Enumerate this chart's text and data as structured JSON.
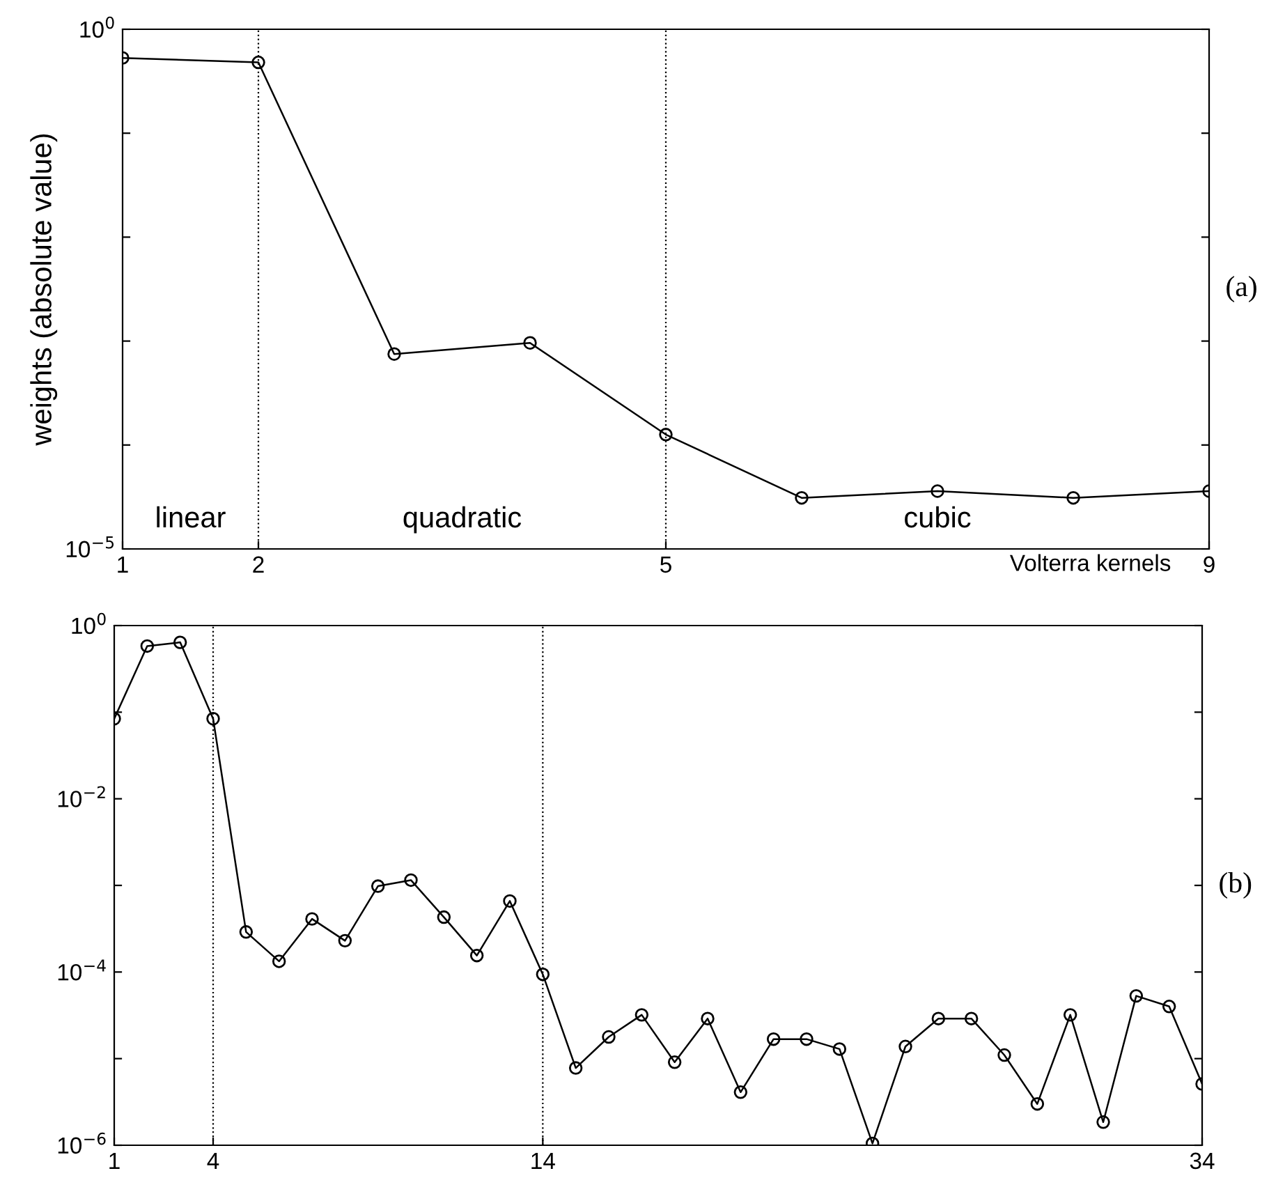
{
  "chart_data": [
    {
      "type": "line",
      "ylabel": "weights (absolute value)",
      "xlabel": "Volterra kernels",
      "log": "y",
      "marker": "circle",
      "line_style": "solid",
      "grid": false,
      "x": [
        1,
        2,
        3,
        4,
        5,
        6,
        7,
        8,
        9
      ],
      "series": [
        {
          "color": "#000000",
          "values": [
            0.53,
            0.48,
            0.00075,
            0.00096,
            0.000126,
            3.1e-05,
            3.6e-05,
            3.1e-05,
            3.6e-05
          ]
        }
      ],
      "xlim": [
        1,
        9
      ],
      "xticks": [
        1,
        2,
        5,
        9
      ],
      "ylim": [
        1e-05,
        1
      ],
      "yticks": [
        {
          "value": 1,
          "label": "10$^{0}$"
        },
        {
          "value": 0.1,
          "label": null
        },
        {
          "value": 0.01,
          "label": null
        },
        {
          "value": 0.001,
          "label": null
        },
        {
          "value": 0.0001,
          "label": null
        },
        {
          "value": 1e-05,
          "label": "10$^{−5}$"
        }
      ],
      "ref_lines": [
        {
          "axis": "x",
          "value": 2,
          "line_style": "dotted",
          "color": "#000000"
        },
        {
          "axis": "x",
          "value": 5,
          "line_style": "dotted",
          "color": "#000000"
        }
      ],
      "annotations": [
        "linear",
        "quadratic",
        "cubic",
        "(a)"
      ]
    },
    {
      "type": "line",
      "log": "y",
      "marker": "circle",
      "line_style": "solid",
      "grid": false,
      "x": [
        1,
        2,
        3,
        4,
        5,
        6,
        7,
        8,
        9,
        10,
        11,
        12,
        13,
        14,
        15,
        16,
        17,
        18,
        19,
        20,
        21,
        22,
        23,
        24,
        25,
        26,
        27,
        28,
        29,
        30,
        31,
        32,
        33,
        34
      ],
      "series": [
        {
          "color": "#000000",
          "values": [
            0.084,
            0.58,
            0.64,
            0.084,
            0.00029,
            0.000133,
            0.00041,
            0.00023,
            0.00098,
            0.00115,
            0.00043,
            0.000155,
            0.00066,
            9.4e-05,
            7.8e-06,
            1.78e-05,
            3.2e-05,
            9.1e-06,
            2.9e-05,
            4.1e-06,
            1.68e-05,
            1.68e-05,
            1.29e-05,
            1.05e-06,
            1.38e-05,
            2.9e-05,
            2.9e-05,
            1.1e-05,
            3e-06,
            3.2e-05,
            1.85e-06,
            5.3e-05,
            4e-05,
            5.1e-06
          ]
        }
      ],
      "xlim": [
        1,
        34
      ],
      "xticks": [
        1,
        4,
        14,
        34
      ],
      "ylim": [
        1e-06,
        1
      ],
      "yticks": [
        {
          "value": 1,
          "label": "10$^{0}$"
        },
        {
          "value": 0.1,
          "label": null
        },
        {
          "value": 0.01,
          "label": "10$^{−2}$"
        },
        {
          "value": 0.001,
          "label": null
        },
        {
          "value": 0.0001,
          "label": "10$^{−4}$"
        },
        {
          "value": 1e-05,
          "label": null
        },
        {
          "value": 1e-06,
          "label": "10$^{−6}$"
        }
      ],
      "ref_lines": [
        {
          "axis": "x",
          "value": 4,
          "line_style": "dotted",
          "color": "#000000"
        },
        {
          "axis": "x",
          "value": 14,
          "line_style": "dotted",
          "color": "#000000"
        }
      ],
      "annotations": [
        "(b)"
      ]
    }
  ]
}
